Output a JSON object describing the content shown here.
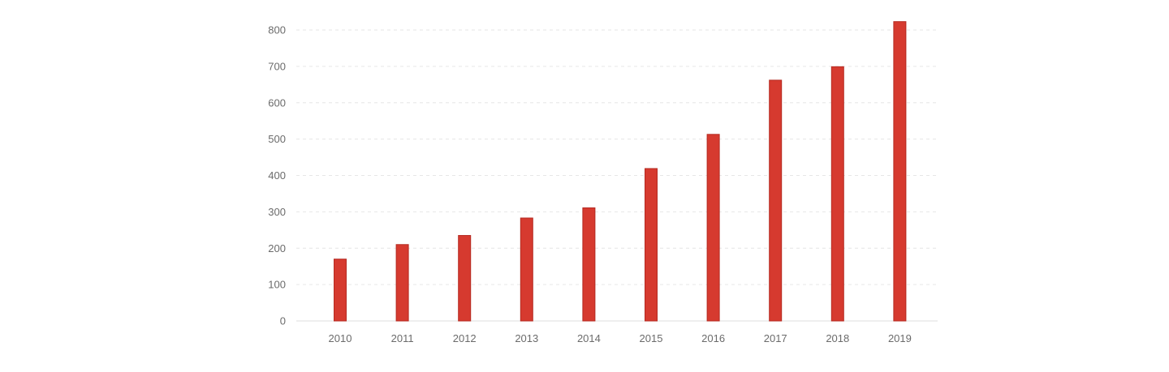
{
  "chart_data": {
    "type": "bar",
    "title": "",
    "xlabel": "",
    "ylabel": "",
    "categories": [
      "2010",
      "2011",
      "2012",
      "2013",
      "2014",
      "2015",
      "2016",
      "2017",
      "2018",
      "2019"
    ],
    "values": [
      170,
      210,
      235,
      283,
      311,
      419,
      513,
      662,
      699,
      823
    ],
    "ylim": [
      0,
      800
    ],
    "yticks": [
      "0",
      "100",
      "200",
      "300",
      "400",
      "500",
      "600",
      "700",
      "800"
    ],
    "grid": true,
    "legend": "none",
    "colors": {
      "bar_fill": "#d63a2f",
      "bar_stroke": "#b52a21",
      "grid": "#e6e6e6",
      "tick_text": "#6b6b6b"
    }
  }
}
